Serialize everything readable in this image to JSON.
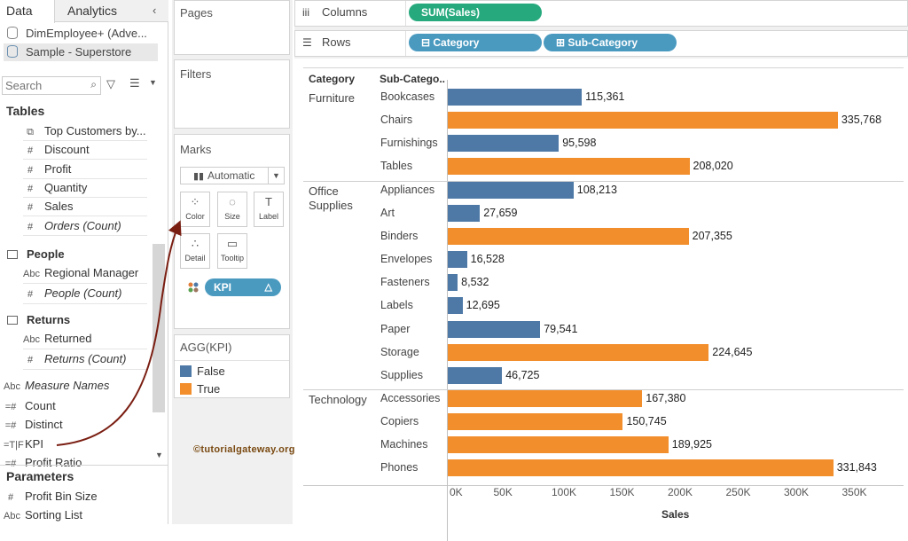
{
  "data_pane": {
    "tabs": [
      {
        "label": "Data"
      },
      {
        "label": "Analytics"
      }
    ],
    "datasources": [
      {
        "label": "DimEmployee+ (Adve..."
      },
      {
        "label": "Sample - Superstore"
      }
    ],
    "search": {
      "placeholder": "Search"
    },
    "tables_heading": "Tables",
    "fields": [
      {
        "label": "Top Customers by...",
        "icon": "⧉",
        "italic": false
      },
      {
        "label": "Discount",
        "icon": "#",
        "italic": false
      },
      {
        "label": "Profit",
        "icon": "#",
        "italic": false
      },
      {
        "label": "Quantity",
        "icon": "#",
        "italic": false
      },
      {
        "label": "Sales",
        "icon": "#",
        "italic": false
      },
      {
        "label": "Orders (Count)",
        "icon": "#",
        "italic": true
      }
    ],
    "groups": [
      {
        "label": "People",
        "fields": [
          {
            "label": "Regional Manager",
            "icon": "Abc",
            "italic": false
          },
          {
            "label": "People (Count)",
            "icon": "#",
            "italic": true
          }
        ]
      },
      {
        "label": "Returns",
        "fields": [
          {
            "label": "Returned",
            "icon": "Abc",
            "italic": false
          },
          {
            "label": "Returns (Count)",
            "icon": "#",
            "italic": true
          }
        ]
      }
    ],
    "measures": [
      {
        "label": "Measure Names",
        "icon": "Abc",
        "italic": true
      },
      {
        "label": "Count",
        "icon": "=#",
        "italic": false
      },
      {
        "label": "Distinct",
        "icon": "=#",
        "italic": false
      },
      {
        "label": "KPI",
        "icon": "=T|F",
        "italic": false
      },
      {
        "label": "Profit Ratio",
        "icon": "=#",
        "italic": false
      }
    ],
    "parameters_heading": "Parameters",
    "parameters": [
      {
        "label": "Profit Bin Size",
        "icon": "#"
      },
      {
        "label": "Sorting List",
        "icon": "Abc"
      }
    ]
  },
  "cards": {
    "pages_title": "Pages",
    "filters_title": "Filters",
    "marks_title": "Marks",
    "marks_type": "Automatic",
    "mark_buttons": [
      {
        "label": "Color"
      },
      {
        "label": "Size"
      },
      {
        "label": "Label"
      },
      {
        "label": "Detail"
      },
      {
        "label": "Tooltip"
      }
    ],
    "kpi_pill": "KPI",
    "legend_title": "AGG(KPI)",
    "legend": [
      {
        "label": "False",
        "color": "#4e79a7"
      },
      {
        "label": "True",
        "color": "#f28e2b"
      }
    ]
  },
  "shelves": {
    "columns_label": "Columns",
    "rows_label": "Rows",
    "columns_pill": "SUM(Sales)",
    "rows_pills": [
      {
        "label": "Category"
      },
      {
        "label": "Sub-Category"
      }
    ]
  },
  "watermark": "©tutorialgateway.org",
  "chart_data": {
    "type": "bar",
    "orientation": "horizontal",
    "row_headers": [
      "Category",
      "Sub-Catego.."
    ],
    "groups": [
      {
        "category": "Furniture",
        "items": [
          {
            "sub": "Bookcases",
            "value": 115361,
            "label": "115,361",
            "kpi": false
          },
          {
            "sub": "Chairs",
            "value": 335768,
            "label": "335,768",
            "kpi": true
          },
          {
            "sub": "Furnishings",
            "value": 95598,
            "label": "95,598",
            "kpi": false
          },
          {
            "sub": "Tables",
            "value": 208020,
            "label": "208,020",
            "kpi": true
          }
        ]
      },
      {
        "category": "Office Supplies",
        "items": [
          {
            "sub": "Appliances",
            "value": 108213,
            "label": "108,213",
            "kpi": false
          },
          {
            "sub": "Art",
            "value": 27659,
            "label": "27,659",
            "kpi": false
          },
          {
            "sub": "Binders",
            "value": 207355,
            "label": "207,355",
            "kpi": true
          },
          {
            "sub": "Envelopes",
            "value": 16528,
            "label": "16,528",
            "kpi": false
          },
          {
            "sub": "Fasteners",
            "value": 8532,
            "label": "8,532",
            "kpi": false
          },
          {
            "sub": "Labels",
            "value": 12695,
            "label": "12,695",
            "kpi": false
          },
          {
            "sub": "Paper",
            "value": 79541,
            "label": "79,541",
            "kpi": false
          },
          {
            "sub": "Storage",
            "value": 224645,
            "label": "224,645",
            "kpi": true
          },
          {
            "sub": "Supplies",
            "value": 46725,
            "label": "46,725",
            "kpi": false
          }
        ]
      },
      {
        "category": "Technology",
        "items": [
          {
            "sub": "Accessories",
            "value": 167380,
            "label": "167,380",
            "kpi": true
          },
          {
            "sub": "Copiers",
            "value": 150745,
            "label": "150,745",
            "kpi": true
          },
          {
            "sub": "Machines",
            "value": 189925,
            "label": "189,925",
            "kpi": true
          },
          {
            "sub": "Phones",
            "value": 331843,
            "label": "331,843",
            "kpi": true
          }
        ]
      }
    ],
    "xlim": [
      0,
      380000
    ],
    "ticks": [
      {
        "value": 0,
        "label": "0K"
      },
      {
        "value": 50000,
        "label": "50K"
      },
      {
        "value": 100000,
        "label": "100K"
      },
      {
        "value": 150000,
        "label": "150K"
      },
      {
        "value": 200000,
        "label": "200K"
      },
      {
        "value": 250000,
        "label": "250K"
      },
      {
        "value": 300000,
        "label": "300K"
      },
      {
        "value": 350000,
        "label": "350K"
      }
    ],
    "xlabel": "Sales",
    "colors": {
      "false": "#4e79a7",
      "true": "#f28e2b"
    }
  }
}
